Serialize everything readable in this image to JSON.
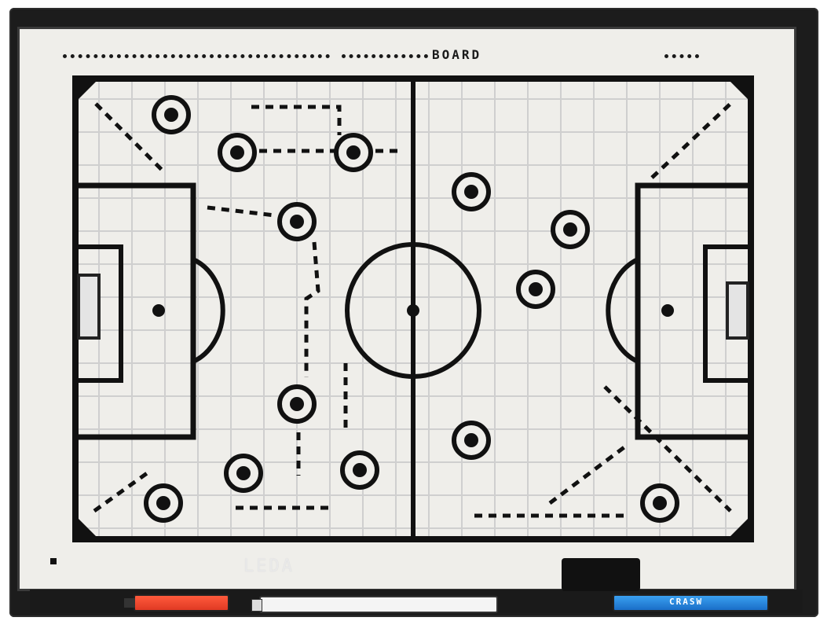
{
  "board": {
    "title": "BOARD",
    "bottom_label": "LEDA",
    "marker_label": "CRASW"
  },
  "colors": {
    "frame": "#1c1c1c",
    "surface": "#efeeea",
    "ink": "#111111",
    "grid": "#c9c9c9",
    "marker_red": "#e03a24",
    "marker_blue": "#1a6ec8"
  },
  "icons": [
    "player-marker-icon",
    "eraser-icon",
    "marker-pen-icon"
  ]
}
